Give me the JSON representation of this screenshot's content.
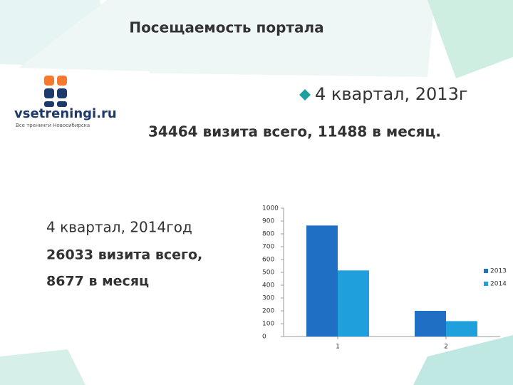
{
  "header": {
    "title": "Посещаемость портала"
  },
  "logo": {
    "name": "vsetreningi.ru",
    "tagline": "Все тренинги Новосибирска"
  },
  "bullet": "4 квартал, 2013г",
  "summary_2013": "34464 визита всего, 11488 в месяц.",
  "block_2014": {
    "period": "4 квартал, 2014год",
    "total": "26033 визита всего,",
    "monthly": "8677 в месяц"
  },
  "chart_data": {
    "type": "bar",
    "categories": [
      "1",
      "2"
    ],
    "series": [
      {
        "name": "2013",
        "color": "#1f6fc5",
        "values": [
          865,
          200
        ]
      },
      {
        "name": "2014",
        "color": "#1fa0dc",
        "values": [
          515,
          120
        ]
      }
    ],
    "ylim": [
      0,
      1000
    ],
    "yticks": [
      0,
      100,
      200,
      300,
      400,
      500,
      600,
      700,
      800,
      900,
      1000
    ]
  }
}
